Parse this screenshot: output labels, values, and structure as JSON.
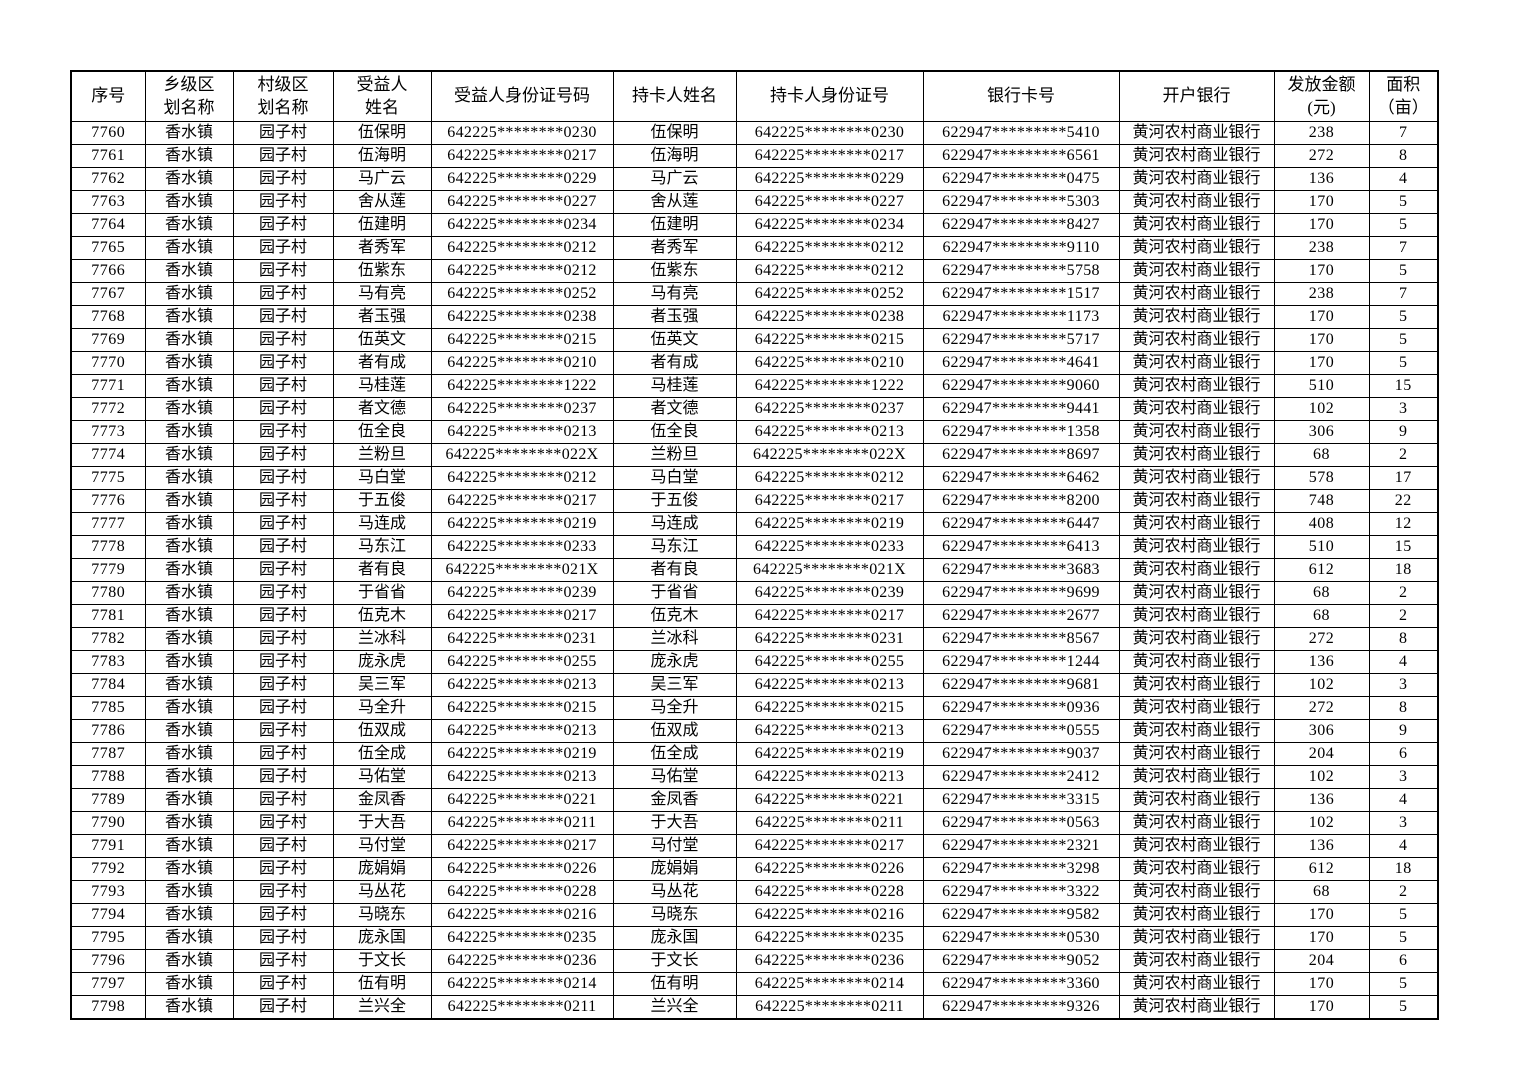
{
  "table": {
    "headers": [
      "序号",
      "乡级区\n划名称",
      "村级区\n划名称",
      "受益人\n姓名",
      "受益人身份证号码",
      "持卡人姓名",
      "持卡人身份证号",
      "银行卡号",
      "开户银行",
      "发放金额\n(元)",
      "面积\n（亩）"
    ],
    "township": "香水镇",
    "village": "园子村",
    "bank": "黄河农村商业银行",
    "rows": [
      [
        "7760",
        "伍保明",
        "642225********0230",
        "622947*********5410",
        "238",
        "7"
      ],
      [
        "7761",
        "伍海明",
        "642225********0217",
        "622947*********6561",
        "272",
        "8"
      ],
      [
        "7762",
        "马广云",
        "642225********0229",
        "622947*********0475",
        "136",
        "4"
      ],
      [
        "7763",
        "舍从莲",
        "642225********0227",
        "622947*********5303",
        "170",
        "5"
      ],
      [
        "7764",
        "伍建明",
        "642225********0234",
        "622947*********8427",
        "170",
        "5"
      ],
      [
        "7765",
        "者秀军",
        "642225********0212",
        "622947*********9110",
        "238",
        "7"
      ],
      [
        "7766",
        "伍紫东",
        "642225********0212",
        "622947*********5758",
        "170",
        "5"
      ],
      [
        "7767",
        "马有亮",
        "642225********0252",
        "622947*********1517",
        "238",
        "7"
      ],
      [
        "7768",
        "者玉强",
        "642225********0238",
        "622947*********1173",
        "170",
        "5"
      ],
      [
        "7769",
        "伍英文",
        "642225********0215",
        "622947*********5717",
        "170",
        "5"
      ],
      [
        "7770",
        "者有成",
        "642225********0210",
        "622947*********4641",
        "170",
        "5"
      ],
      [
        "7771",
        "马桂莲",
        "642225********1222",
        "622947*********9060",
        "510",
        "15"
      ],
      [
        "7772",
        "者文德",
        "642225********0237",
        "622947*********9441",
        "102",
        "3"
      ],
      [
        "7773",
        "伍全良",
        "642225********0213",
        "622947*********1358",
        "306",
        "9"
      ],
      [
        "7774",
        "兰粉旦",
        "642225********022X",
        "622947*********8697",
        "68",
        "2"
      ],
      [
        "7775",
        "马白堂",
        "642225********0212",
        "622947*********6462",
        "578",
        "17"
      ],
      [
        "7776",
        "于五俊",
        "642225********0217",
        "622947*********8200",
        "748",
        "22"
      ],
      [
        "7777",
        "马连成",
        "642225********0219",
        "622947*********6447",
        "408",
        "12"
      ],
      [
        "7778",
        "马东江",
        "642225********0233",
        "622947*********6413",
        "510",
        "15"
      ],
      [
        "7779",
        "者有良",
        "642225********021X",
        "622947*********3683",
        "612",
        "18"
      ],
      [
        "7780",
        "于省省",
        "642225********0239",
        "622947*********9699",
        "68",
        "2"
      ],
      [
        "7781",
        "伍克木",
        "642225********0217",
        "622947*********2677",
        "68",
        "2"
      ],
      [
        "7782",
        "兰冰科",
        "642225********0231",
        "622947*********8567",
        "272",
        "8"
      ],
      [
        "7783",
        "庞永虎",
        "642225********0255",
        "622947*********1244",
        "136",
        "4"
      ],
      [
        "7784",
        "吴三军",
        "642225********0213",
        "622947*********9681",
        "102",
        "3"
      ],
      [
        "7785",
        "马全升",
        "642225********0215",
        "622947*********0936",
        "272",
        "8"
      ],
      [
        "7786",
        "伍双成",
        "642225********0213",
        "622947*********0555",
        "306",
        "9"
      ],
      [
        "7787",
        "伍全成",
        "642225********0219",
        "622947*********9037",
        "204",
        "6"
      ],
      [
        "7788",
        "马佑堂",
        "642225********0213",
        "622947*********2412",
        "102",
        "3"
      ],
      [
        "7789",
        "金凤香",
        "642225********0221",
        "622947*********3315",
        "136",
        "4"
      ],
      [
        "7790",
        "于大吾",
        "642225********0211",
        "622947*********0563",
        "102",
        "3"
      ],
      [
        "7791",
        "马付堂",
        "642225********0217",
        "622947*********2321",
        "136",
        "4"
      ],
      [
        "7792",
        "庞娟娟",
        "642225********0226",
        "622947*********3298",
        "612",
        "18"
      ],
      [
        "7793",
        "马丛花",
        "642225********0228",
        "622947*********3322",
        "68",
        "2"
      ],
      [
        "7794",
        "马晓东",
        "642225********0216",
        "622947*********9582",
        "170",
        "5"
      ],
      [
        "7795",
        "庞永国",
        "642225********0235",
        "622947*********0530",
        "170",
        "5"
      ],
      [
        "7796",
        "于文长",
        "642225********0236",
        "622947*********9052",
        "204",
        "6"
      ],
      [
        "7797",
        "伍有明",
        "642225********0214",
        "622947*********3360",
        "170",
        "5"
      ],
      [
        "7798",
        "兰兴全",
        "642225********0211",
        "622947*********9326",
        "170",
        "5"
      ]
    ]
  }
}
